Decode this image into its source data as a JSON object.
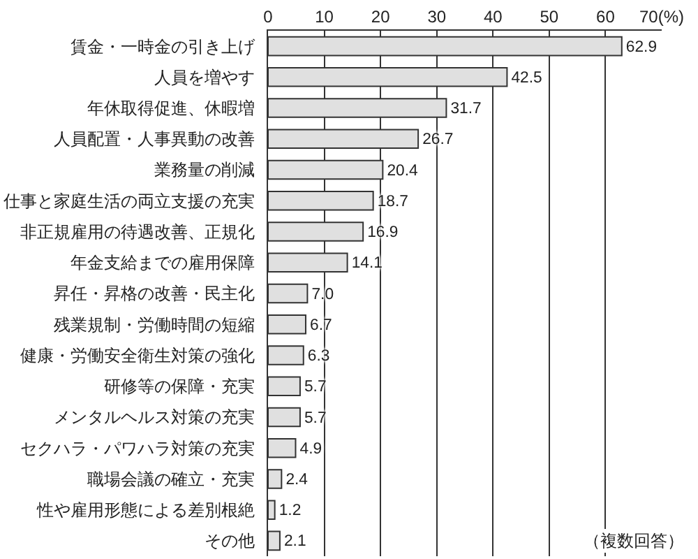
{
  "chart_data": {
    "type": "bar",
    "orientation": "horizontal",
    "categories": [
      "賃金・一時金の引き上げ",
      "人員を増やす",
      "年休取得促進、休暇増",
      "人員配置・人事異動の改善",
      "業務量の削減",
      "仕事と家庭生活の両立支援の充実",
      "非正規雇用の待遇改善、正規化",
      "年金支給までの雇用保障",
      "昇任・昇格の改善・民主化",
      "残業規制・労働時間の短縮",
      "健康・労働安全衛生対策の強化",
      "研修等の保障・充実",
      "メンタルヘルス対策の充実",
      "セクハラ・パワハラ対策の充実",
      "職場会議の確立・充実",
      "性や雇用形態による差別根絶",
      "その他"
    ],
    "values": [
      62.9,
      42.5,
      31.7,
      26.7,
      20.4,
      18.7,
      16.9,
      14.1,
      7.0,
      6.7,
      6.3,
      5.7,
      5.7,
      4.9,
      2.4,
      1.2,
      2.1
    ],
    "value_labels": [
      "62.9",
      "42.5",
      "31.7",
      "26.7",
      "20.4",
      "18.7",
      "16.9",
      "14.1",
      "7.0",
      "6.7",
      "6.3",
      "5.7",
      "5.7",
      "4.9",
      "2.4",
      "1.2",
      "2.1"
    ],
    "color": "#e0e0e0",
    "xlim": [
      0,
      70
    ],
    "xticks": [
      0,
      10,
      20,
      30,
      40,
      50,
      60,
      {
        "value": 70,
        "label": "70(%)"
      }
    ],
    "grid": "x",
    "annotations": [
      "（複数回答）"
    ]
  }
}
